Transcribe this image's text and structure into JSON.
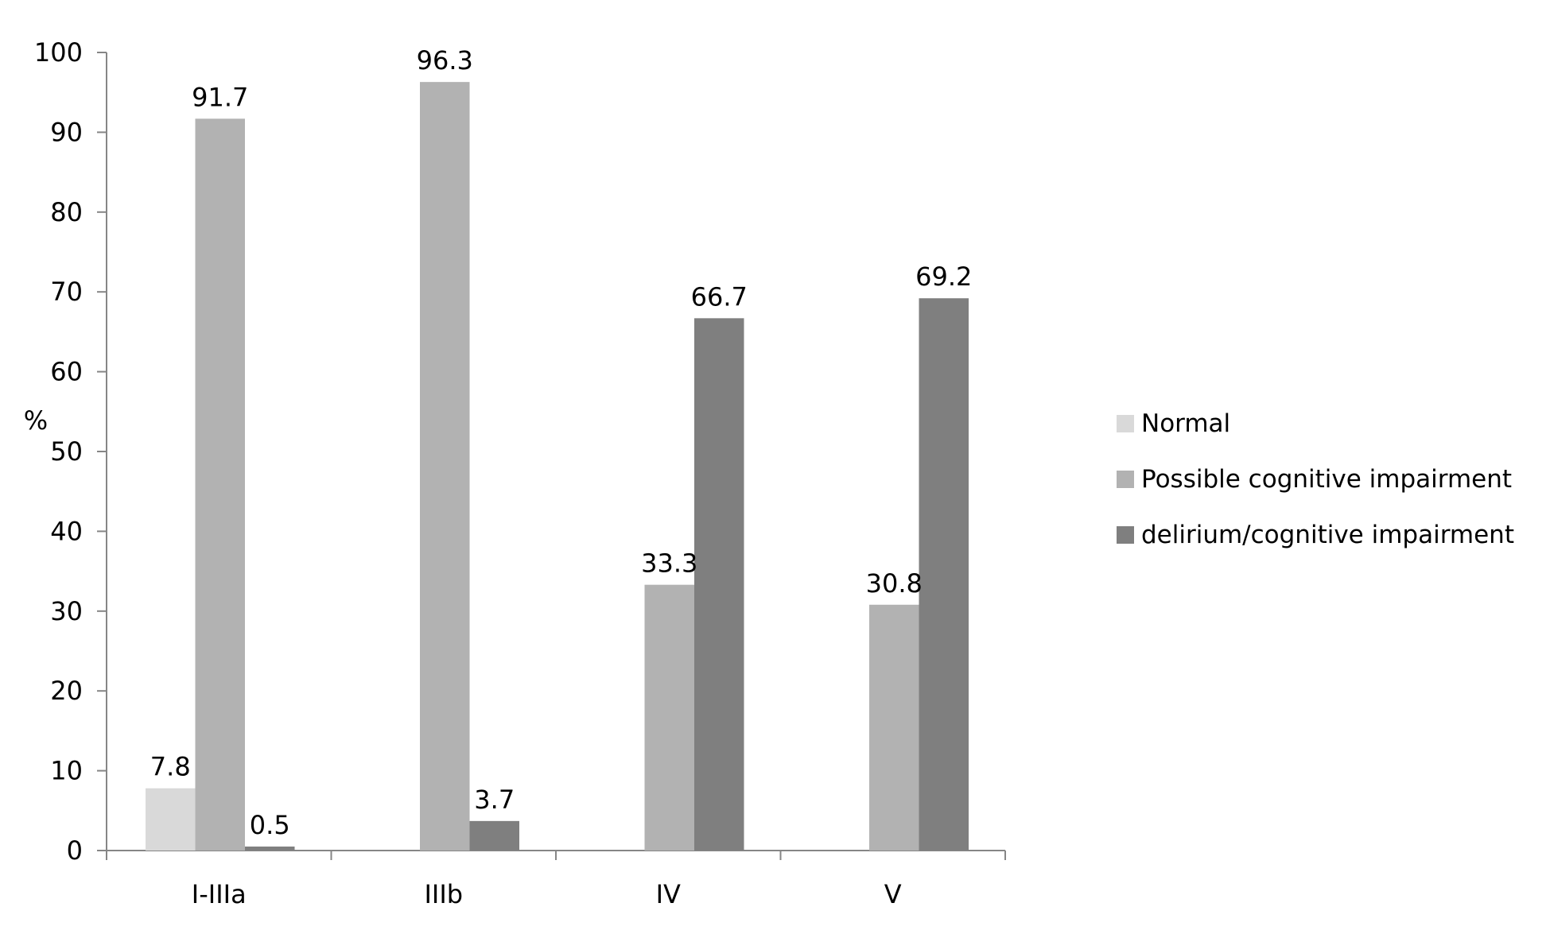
{
  "chart_data": {
    "type": "bar",
    "title": "",
    "xlabel": "",
    "ylabel": "%",
    "ylim": [
      0,
      100
    ],
    "yticks": [
      0,
      10,
      20,
      30,
      40,
      50,
      60,
      70,
      80,
      90,
      100
    ],
    "categories": [
      "I-IIIa",
      "IIIb",
      "IV",
      "V"
    ],
    "series": [
      {
        "name": "Normal",
        "color": "#d9d9d9",
        "values": [
          7.8,
          null,
          null,
          null
        ],
        "labels": [
          "7.8",
          null,
          null,
          null
        ]
      },
      {
        "name": "Possible cognitive impairment",
        "color": "#b2b2b2",
        "values": [
          91.7,
          96.3,
          33.3,
          30.8
        ],
        "labels": [
          "91.7",
          "96.3",
          "33.3",
          "30.8"
        ]
      },
      {
        "name": "delirium/cognitive impairment",
        "color": "#7f7f7f",
        "values": [
          0.5,
          3.7,
          66.7,
          69.2
        ],
        "labels": [
          "0.5",
          "3.7",
          "66.7",
          "69.2"
        ]
      }
    ],
    "legend_position": "right",
    "grid": false
  }
}
